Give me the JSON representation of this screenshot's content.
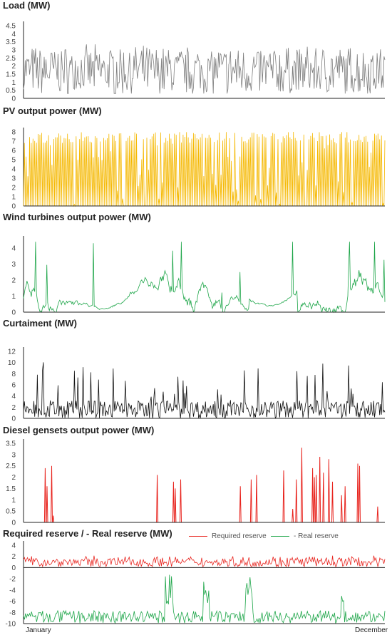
{
  "chart_data": [
    {
      "type": "line",
      "title": "Load (MW)",
      "ylim": [
        0,
        4.5
      ],
      "yticks": [
        "0",
        "0.5",
        "1",
        "1.5",
        "2",
        "2.5",
        "3",
        "3.5",
        "4",
        "4.5"
      ],
      "color": "#7f7f7f",
      "series": [
        {
          "profile": "noisy",
          "base": 1.7,
          "range": [
            0.3,
            4.0
          ]
        }
      ]
    },
    {
      "type": "line",
      "title": "PV output power (MW)",
      "ylim": [
        0,
        8
      ],
      "yticks": [
        "0",
        "1",
        "2",
        "3",
        "4",
        "5",
        "6",
        "7",
        "8"
      ],
      "color": "#f5b800",
      "series": [
        {
          "profile": "daily-spikes",
          "peak": 8.0
        }
      ]
    },
    {
      "type": "line",
      "title": "Wind turbines output power (MW)",
      "ylim": [
        0,
        4.5
      ],
      "yticks": [
        "0",
        "1",
        "2",
        "3",
        "4"
      ],
      "color": "#1fa64a",
      "series": [
        {
          "profile": "bursty",
          "max": 4.4
        }
      ]
    },
    {
      "type": "line",
      "title": "Curtaiment (MW)",
      "ylim": [
        0,
        12
      ],
      "yticks": [
        "0",
        "2",
        "4",
        "6",
        "8",
        "10",
        "12"
      ],
      "color": "#111111",
      "series": [
        {
          "profile": "spiky",
          "max": 10.2
        }
      ]
    },
    {
      "type": "line",
      "title": "Diesel gensets output power (MW)",
      "ylim": [
        0,
        3.5
      ],
      "yticks": [
        "0",
        "0.5",
        "1",
        "1.5",
        "2",
        "2.5",
        "3",
        "3.5"
      ],
      "color": "#e8241e",
      "series": [
        {
          "profile": "sparse-events",
          "events": [
            [
              0.06,
              2.4
            ],
            [
              0.065,
              1.6
            ],
            [
              0.078,
              2.5
            ],
            [
              0.082,
              0.3
            ],
            [
              0.37,
              2.1
            ],
            [
              0.415,
              1.8
            ],
            [
              0.42,
              1.5
            ],
            [
              0.435,
              1.9
            ],
            [
              0.6,
              1.6
            ],
            [
              0.63,
              1.9
            ],
            [
              0.645,
              2.1
            ],
            [
              0.72,
              2.3
            ],
            [
              0.745,
              0.6
            ],
            [
              0.755,
              1.9
            ],
            [
              0.77,
              3.3
            ],
            [
              0.8,
              2.4
            ],
            [
              0.805,
              2.0
            ],
            [
              0.81,
              2.1
            ],
            [
              0.82,
              2.9
            ],
            [
              0.83,
              2.2
            ],
            [
              0.845,
              2.8
            ],
            [
              0.855,
              1.8
            ],
            [
              0.88,
              1.2
            ],
            [
              0.89,
              1.6
            ],
            [
              0.925,
              2.6
            ],
            [
              0.93,
              2.5
            ],
            [
              0.98,
              0.7
            ]
          ]
        }
      ]
    },
    {
      "type": "line",
      "title": "Required reserve / - Real reserve (MW)",
      "ylim": [
        -10,
        4
      ],
      "yticks": [
        "-10",
        "-8",
        "-6",
        "-4",
        "-2",
        "0",
        "2",
        "4"
      ],
      "legend": [
        "Required reserve",
        "- Real reserve"
      ],
      "colors": [
        "#e8241e",
        "#1fa64a"
      ],
      "series": [
        {
          "name": "Required reserve",
          "profile": "noisy",
          "base": 1.0,
          "range": [
            0.2,
            2.6
          ]
        },
        {
          "name": "- Real reserve",
          "profile": "reserve",
          "base": -8.8,
          "range": [
            -10,
            -0.5
          ]
        }
      ]
    }
  ],
  "x_axis": {
    "start_label": "January",
    "end_label": "December"
  }
}
